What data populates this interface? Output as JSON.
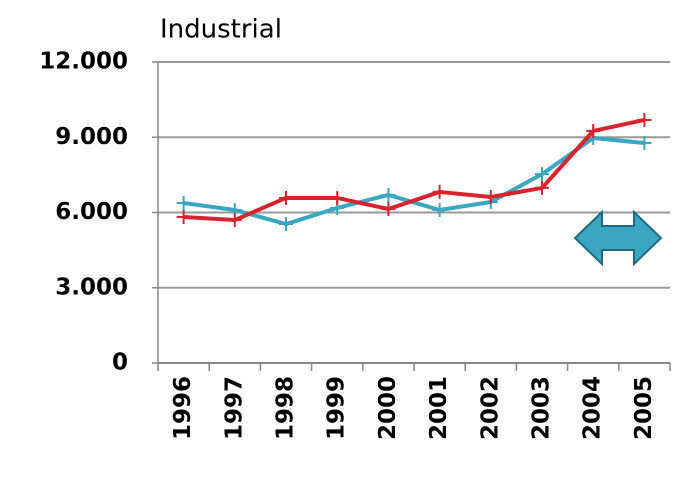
{
  "chart_data": {
    "type": "line",
    "title": "Industrial",
    "categories": [
      "1996",
      "1997",
      "1998",
      "1999",
      "2000",
      "2001",
      "2002",
      "2003",
      "2004",
      "2005"
    ],
    "series": [
      {
        "color": "#3ba6c1",
        "values": [
          6380,
          6100,
          5540,
          6180,
          6700,
          6100,
          6420,
          7530,
          8970,
          8770
        ]
      },
      {
        "color": "#d7232e",
        "values": [
          5820,
          5700,
          6580,
          6580,
          6140,
          6820,
          6620,
          6980,
          9250,
          9690
        ]
      }
    ],
    "ylim": [
      0,
      12000
    ],
    "yticks": [
      0,
      {
        "value": 3000,
        "label": "3.000"
      },
      {
        "value": 6000,
        "label": "6.000"
      },
      {
        "value": 9000,
        "label": "9.000"
      },
      {
        "value": 12000,
        "label": "12.000"
      }
    ],
    "grid": true
  }
}
